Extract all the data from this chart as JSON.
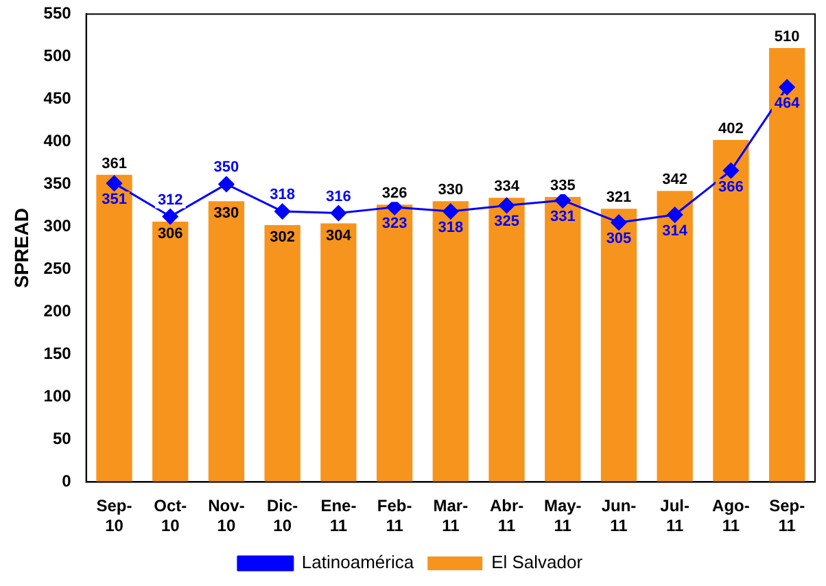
{
  "chart_data": {
    "type": "bar",
    "ylabel": "SPREAD",
    "categories": [
      "Sep-10",
      "Oct-10",
      "Nov-10",
      "Dic-10",
      "Ene-11",
      "Feb-11",
      "Mar-11",
      "Abr-11",
      "May-11",
      "Jun-11",
      "Jul-11",
      "Ago-11",
      "Sep-11"
    ],
    "series": [
      {
        "name": "El Salvador",
        "color": "#f7941d",
        "values": [
          361,
          306,
          330,
          302,
          304,
          326,
          330,
          334,
          335,
          321,
          342,
          402,
          510
        ]
      },
      {
        "name": "Latinoamérica",
        "type": "line",
        "color": "#0000ff",
        "marker": "diamond",
        "values": [
          351,
          312,
          350,
          318,
          316,
          323,
          318,
          325,
          331,
          305,
          314,
          366,
          464
        ]
      }
    ],
    "ylim": [
      0,
      550
    ],
    "yticks": [
      0,
      50,
      100,
      150,
      200,
      250,
      300,
      350,
      400,
      450,
      500,
      550
    ],
    "data_labels": true,
    "legend": "bottom",
    "grid": false
  }
}
